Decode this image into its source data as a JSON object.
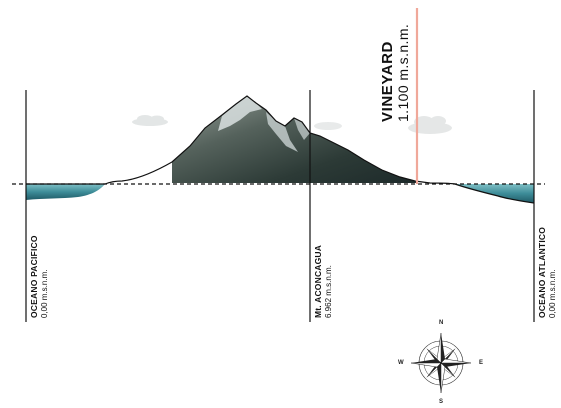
{
  "markers": {
    "pacific": {
      "name": "OCEANO PACIFICO",
      "elevation": "0,00 m.s.n.m."
    },
    "aconcagua": {
      "name": "Mt. ACONCAGUA",
      "elevation": "6.962  m.s.n.m."
    },
    "atlantic": {
      "name": "OCEANO ATLANTICO",
      "elevation": "0,00 m.s.n.m."
    },
    "vineyard": {
      "name": "VINEYARD",
      "elevation": "1.100 m.s.n.m."
    }
  },
  "compass": {
    "north": "N",
    "south": "S",
    "east": "E",
    "west": "W"
  },
  "colors": {
    "water": "#3b8a96",
    "mountain": "#3a4a44",
    "snow": "#d4dcdc",
    "vineyard_line": "#f0a89a",
    "lines": "#111111"
  }
}
